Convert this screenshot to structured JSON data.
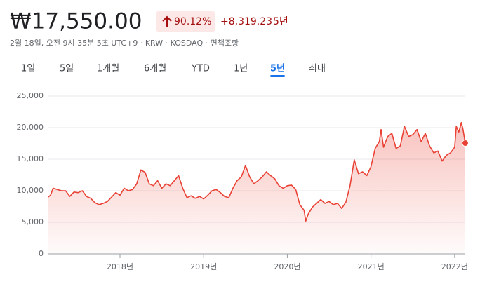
{
  "header": {
    "price": "₩17,550.00",
    "change_pct": "90.12%",
    "change": "+8,319.23",
    "period": "5년",
    "subtitle": "2월 18일, 오전 9시 35분 5초 UTC+9 · KRW · KOSDAQ · 면책조항",
    "tabs": [
      "1일",
      "5일",
      "1개월",
      "6개월",
      "YTD",
      "1년",
      "5년",
      "최대"
    ],
    "active_tab": 6
  },
  "chart_data": {
    "type": "line",
    "x": [
      2017.14,
      2017.17,
      2017.2,
      2017.25,
      2017.3,
      2017.35,
      2017.4,
      2017.45,
      2017.5,
      2017.55,
      2017.6,
      2017.65,
      2017.7,
      2017.75,
      2017.8,
      2017.85,
      2017.9,
      2017.95,
      2018.0,
      2018.05,
      2018.1,
      2018.15,
      2018.2,
      2018.25,
      2018.3,
      2018.35,
      2018.4,
      2018.45,
      2018.5,
      2018.55,
      2018.6,
      2018.65,
      2018.7,
      2018.75,
      2018.8,
      2018.85,
      2018.9,
      2018.95,
      2019.0,
      2019.05,
      2019.1,
      2019.15,
      2019.2,
      2019.25,
      2019.3,
      2019.35,
      2019.4,
      2019.45,
      2019.5,
      2019.55,
      2019.6,
      2019.65,
      2019.7,
      2019.75,
      2019.8,
      2019.85,
      2019.9,
      2019.95,
      2020.0,
      2020.05,
      2020.1,
      2020.15,
      2020.2,
      2020.22,
      2020.25,
      2020.3,
      2020.35,
      2020.4,
      2020.45,
      2020.5,
      2020.55,
      2020.6,
      2020.65,
      2020.7,
      2020.75,
      2020.8,
      2020.85,
      2020.9,
      2020.95,
      2021.0,
      2021.05,
      2021.1,
      2021.12,
      2021.15,
      2021.2,
      2021.25,
      2021.3,
      2021.35,
      2021.4,
      2021.45,
      2021.5,
      2021.55,
      2021.6,
      2021.65,
      2021.7,
      2021.75,
      2021.8,
      2021.85,
      2021.9,
      2021.95,
      2022.0,
      2022.02,
      2022.05,
      2022.08,
      2022.1,
      2022.127
    ],
    "series": [
      {
        "color": "#e94235",
        "values": [
          9000,
          9300,
          10400,
          10200,
          10000,
          10000,
          9100,
          9800,
          9700,
          10000,
          9100,
          8800,
          8100,
          7800,
          8000,
          8300,
          9000,
          9700,
          9300,
          10400,
          10000,
          10200,
          11100,
          13300,
          12900,
          11100,
          10800,
          11600,
          10400,
          11100,
          10800,
          11600,
          12400,
          10400,
          8900,
          9200,
          8800,
          9100,
          8700,
          9300,
          10000,
          10200,
          9700,
          9100,
          8900,
          10400,
          11600,
          12200,
          14000,
          12200,
          11100,
          11600,
          12200,
          13000,
          12400,
          11900,
          10800,
          10400,
          10800,
          10900,
          10200,
          7800,
          6900,
          5200,
          6300,
          7400,
          8000,
          8600,
          8000,
          8300,
          7800,
          8000,
          7200,
          8200,
          10800,
          14900,
          12700,
          13000,
          12400,
          13800,
          16700,
          17800,
          19700,
          16900,
          18600,
          19100,
          16700,
          17100,
          20200,
          18600,
          18900,
          19700,
          17800,
          19100,
          17100,
          16000,
          16300,
          14700,
          15600,
          16000,
          16900,
          20200,
          19300,
          20800,
          19700,
          17550
        ]
      }
    ],
    "xlim": [
      2017.136,
      2022.127
    ],
    "xticks": [
      {
        "value": 2018,
        "label": "2018년"
      },
      {
        "value": 2019,
        "label": "2019년"
      },
      {
        "value": 2020,
        "label": "2020년"
      },
      {
        "value": 2021,
        "label": "2021년"
      },
      {
        "value": 2022,
        "label": "2022년"
      }
    ],
    "ylim": [
      0,
      25000
    ],
    "yticks": [
      0,
      {
        "value": 5000,
        "label": "5,000"
      },
      {
        "value": 10000,
        "label": "10,000"
      },
      {
        "value": 15000,
        "label": "15,000"
      },
      {
        "value": 20000,
        "label": "20,000"
      },
      {
        "value": 25000,
        "label": "25,000"
      }
    ],
    "grid": true
  }
}
